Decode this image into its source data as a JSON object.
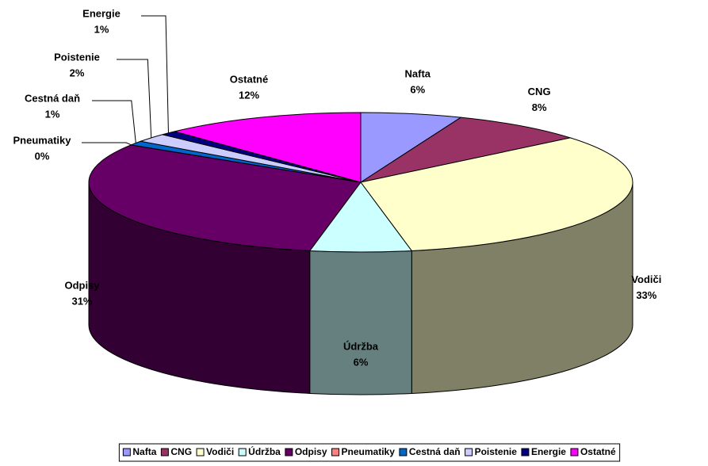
{
  "chart_data": {
    "type": "pie3d",
    "categories": [
      "Nafta",
      "CNG",
      "Vodiči",
      "Údržba",
      "Odpisy",
      "Pneumatiky",
      "Cestná daň",
      "Poistenie",
      "Energie",
      "Ostatné"
    ],
    "values": [
      6,
      8,
      33,
      6,
      31,
      0,
      1,
      2,
      1,
      12
    ],
    "value_labels": [
      "6%",
      "8%",
      "33%",
      "6%",
      "31%",
      "0%",
      "1%",
      "2%",
      "1%",
      "12%"
    ],
    "colors": [
      "#9999FF",
      "#993366",
      "#FFFFCC",
      "#CCFFFF",
      "#660066",
      "#FF8080",
      "#0066CC",
      "#CCCCFF",
      "#000080",
      "#FF00FF"
    ],
    "legend": "bottom"
  }
}
